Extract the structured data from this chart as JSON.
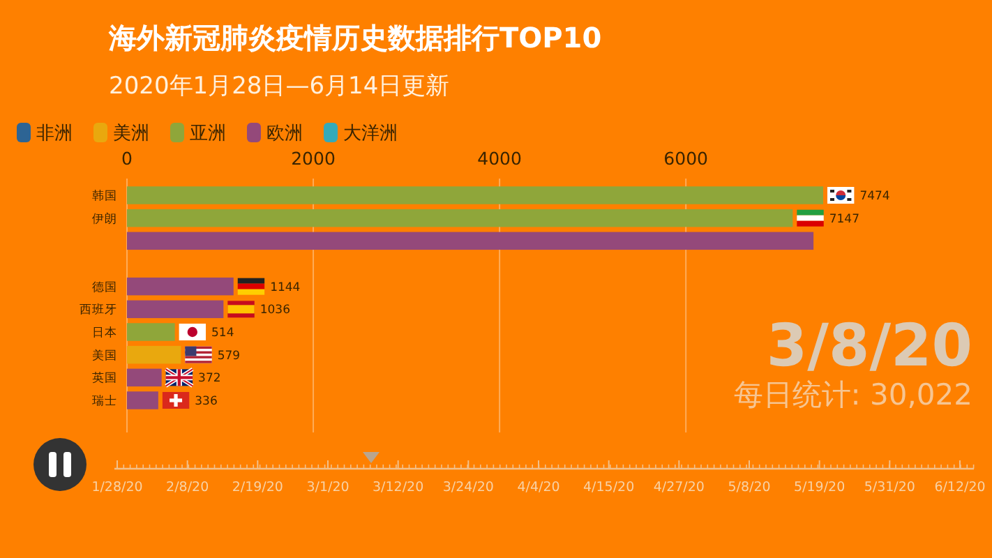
{
  "chart_data": {
    "type": "bar",
    "orientation": "horizontal",
    "stacked": true,
    "title": "海外新冠肺炎疫情历史数据排行TOP10",
    "subtitle": "2020年1月28日—6月14日更新",
    "categories": [
      "韩国",
      "伊朗",
      null,
      null,
      "德国",
      "西班牙",
      "日本",
      "美国",
      "英国",
      "瑞士"
    ],
    "series": [
      {
        "name": "非洲",
        "color": "#2d6494",
        "values": [
          null,
          null,
          null,
          null,
          null,
          null,
          null,
          null,
          null,
          null
        ]
      },
      {
        "name": "美洲",
        "color": "#e9a80e",
        "values": [
          null,
          null,
          null,
          null,
          null,
          null,
          null,
          579,
          null,
          null
        ],
        "value_labels": [
          null,
          null,
          null,
          null,
          null,
          null,
          null,
          "579",
          null,
          null
        ]
      },
      {
        "name": "亚洲",
        "color": "#8fa63a",
        "values": [
          7474,
          7147,
          null,
          null,
          null,
          null,
          514,
          null,
          null,
          null
        ],
        "value_labels": [
          "7474",
          "7147",
          null,
          null,
          null,
          null,
          "514",
          null,
          null,
          null
        ]
      },
      {
        "name": "欧洲",
        "color": "#94497a",
        "values": [
          null,
          null,
          7370,
          null,
          1144,
          1036,
          null,
          null,
          372,
          336
        ],
        "value_labels": [
          null,
          null,
          null,
          null,
          "1144",
          "1036",
          null,
          null,
          "372",
          "336"
        ]
      },
      {
        "name": "大洋洲",
        "color": "#35aab8",
        "values": [
          null,
          null,
          null,
          null,
          null,
          null,
          null,
          null,
          null,
          null
        ]
      }
    ],
    "xlim": [
      0,
      7474
    ],
    "xticks": [
      0,
      2000,
      4000,
      6000
    ],
    "grid": "x",
    "legend": "top left",
    "annotations": [
      "3/8/20",
      "每日统计: 30,022",
      "1/28/20",
      "2/8/20",
      "2/19/20",
      "3/1/20",
      "3/12/20",
      "3/24/20",
      "4/4/20",
      "4/15/20",
      "4/27/20",
      "5/8/20",
      "5/19/20",
      "5/31/20",
      "6/12/20"
    ]
  }
}
